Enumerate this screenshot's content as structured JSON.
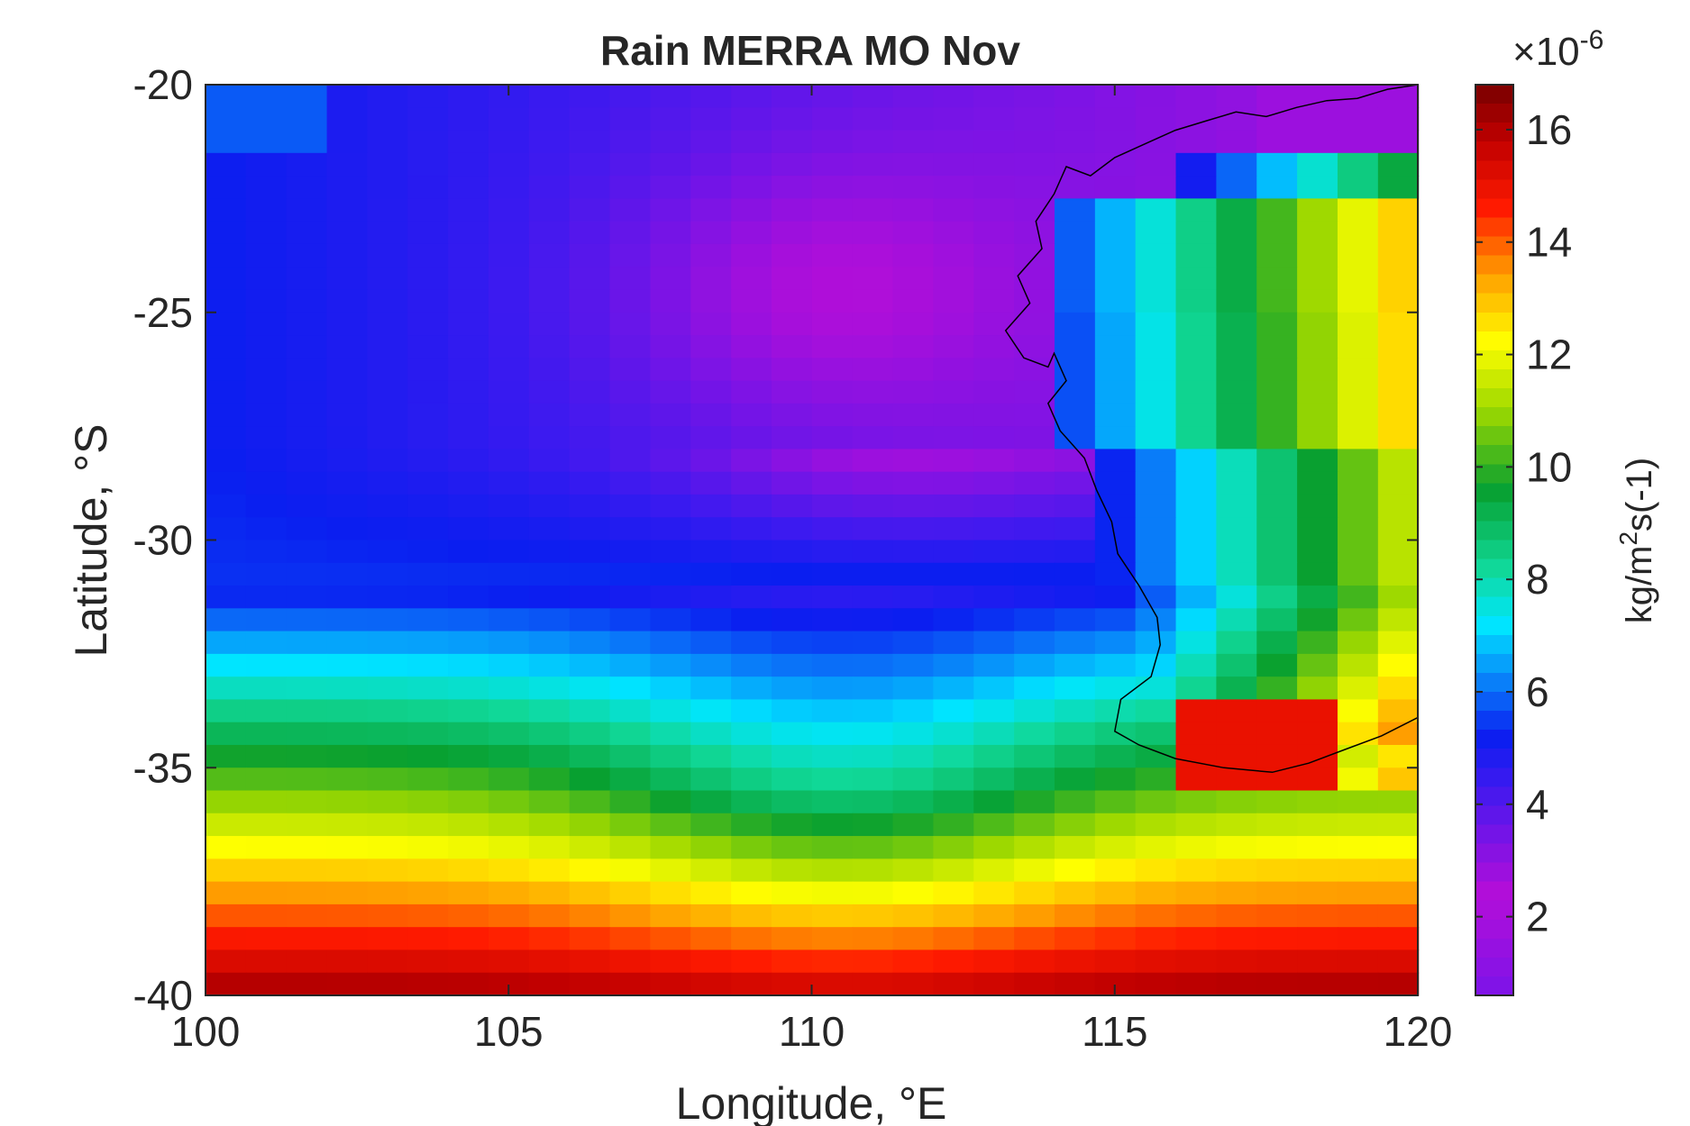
{
  "chart_data": {
    "type": "heatmap",
    "title": "Rain MERRA MO Nov",
    "xlabel": "Longitude, °E",
    "ylabel": "Latitude, °S",
    "xlim": [
      100,
      120
    ],
    "ylim": [
      -40,
      -20
    ],
    "x_ticks": [
      100,
      105,
      110,
      115,
      120
    ],
    "x_tick_labels": [
      "100",
      "105",
      "110",
      "115",
      "120"
    ],
    "y_ticks": [
      -20,
      -25,
      -30,
      -35,
      -40
    ],
    "y_tick_labels": [
      "-20",
      "-25",
      "-30",
      "-35",
      "-40"
    ],
    "grid": false,
    "colormap": "jet-like (purple → blue → cyan → green → yellow → red → dark red)",
    "colorbar": {
      "label": "kg/m²s(-1)",
      "label_parts": [
        "kg/m",
        "2",
        "s",
        "(-1)"
      ],
      "scale_multiplier": "×10⁻⁶",
      "multiplier_parts": [
        "×10",
        "-6"
      ],
      "range": [
        0.6,
        16.8
      ],
      "ticks": [
        2,
        4,
        6,
        8,
        10,
        12,
        14,
        16
      ],
      "tick_labels": [
        "2",
        "4",
        "6",
        "8",
        "10",
        "12",
        "14",
        "16"
      ]
    },
    "grid_cells": {
      "lon_start": 100,
      "lon_step": 0.667,
      "ncols": 30,
      "lat_start": -20,
      "lat_step": -0.5,
      "nrows": 40,
      "units": "x 1e-6 kg/m^2/s"
    },
    "coastline": "Western Australia, approx 113.5–120°E, 20–35°S"
  },
  "colors": {
    "axes": "#262626",
    "coast": "#000000",
    "colormap_stops": [
      "#7c14e8",
      "#b40ed8",
      "#3a1af0",
      "#0a1ef0",
      "#0a6ef8",
      "#00e6ff",
      "#10d898",
      "#08a030",
      "#9cd800",
      "#ffff00",
      "#ffa000",
      "#ff1a00",
      "#c00000",
      "#780000"
    ]
  }
}
